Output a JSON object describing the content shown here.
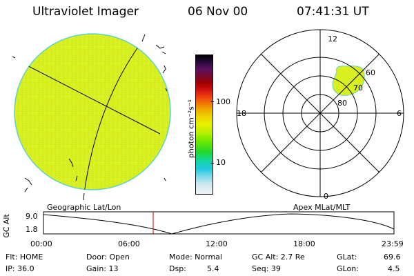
{
  "header": {
    "instrument": "Ultraviolet Imager",
    "date": "06 Nov 00",
    "time": "07:41:31 UT"
  },
  "colorbar": {
    "unit_label": "photon cm⁻²s⁻¹",
    "ticks": [
      "100",
      "10"
    ],
    "colors_top_to_bottom": [
      "#000000",
      "#2a0a3a",
      "#5a1060",
      "#7a0a30",
      "#a00000",
      "#d01010",
      "#f04010",
      "#f07a00",
      "#f0b000",
      "#f0d800",
      "#e8f000",
      "#b8f000",
      "#70e800",
      "#20d830",
      "#10d8a0",
      "#20c8e0",
      "#88dcec",
      "#cce8ee",
      "#f0f4f4"
    ]
  },
  "polar_plot": {
    "mlt_labels": {
      "top": "12",
      "right": "6",
      "bottom": "0",
      "left": "18"
    },
    "lat_labels": [
      "60",
      "70",
      "80"
    ]
  },
  "timeline": {
    "left_title": "Geographic Lat/Lon",
    "right_title": "Apex MLat/MLT",
    "y_axis_label": "GC Alt",
    "y_ticks": [
      "9.0",
      "1.8"
    ],
    "x_ticks": [
      "00:00",
      "06:00",
      "12:00",
      "18:00",
      "23:59"
    ],
    "marker_color": "#cc0000"
  },
  "status": {
    "flt": "Flt: HOME",
    "ip": "IP: 36.0",
    "door": "Door: Open",
    "gain": "Gain: 13",
    "mode": "Mode: Normal",
    "dsp_label": "Dsp:",
    "dsp_value": "5.4",
    "gc_alt": "GC Alt: 2.7 Re",
    "seq": "Seq: 39",
    "glat_label": "GLat:",
    "glat_value": "69.6",
    "glon_label": "GLon:",
    "glon_value": "4.5"
  },
  "image_colors": {
    "disk_fill": "#d8f020",
    "disk_edge": "#60d0d0"
  }
}
